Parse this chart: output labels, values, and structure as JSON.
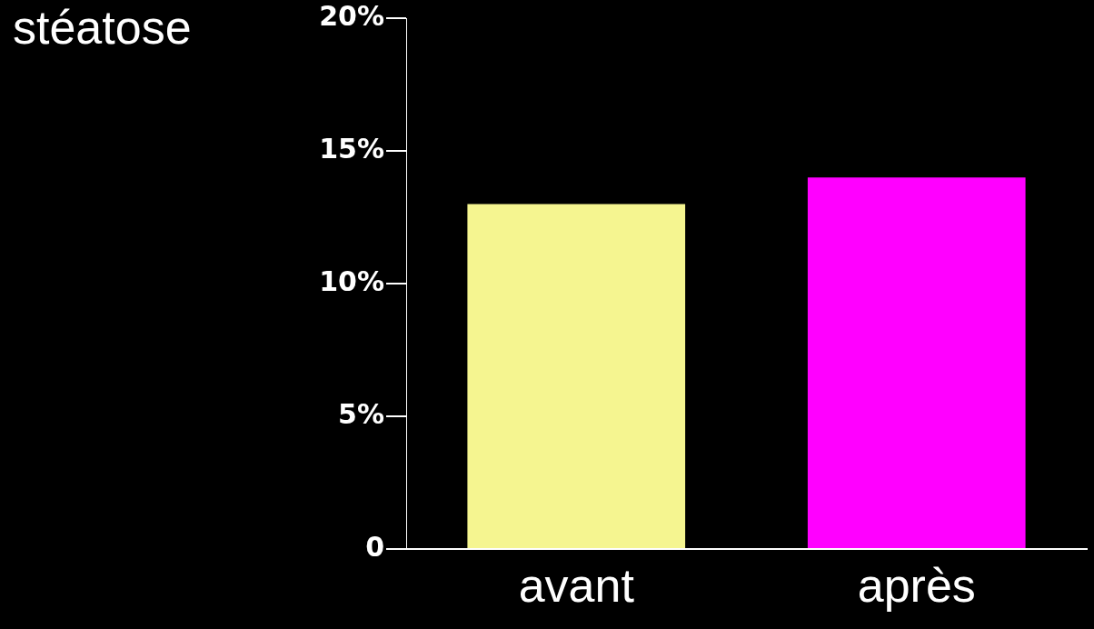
{
  "chart_data": {
    "type": "bar",
    "ylabel": "stéatose",
    "categories": [
      "avant",
      "après"
    ],
    "series": [
      {
        "colors": [
          "#f5f590",
          "#ff00ff"
        ],
        "values": [
          13,
          14
        ]
      }
    ],
    "ylim": [
      0,
      20
    ],
    "yticks": [
      0,
      {
        "value": 5,
        "label": "5%"
      },
      {
        "value": 10,
        "label": "10%"
      },
      {
        "value": 15,
        "label": "15%"
      },
      {
        "value": 20,
        "label": "20%"
      }
    ],
    "grid": false,
    "legend": false
  }
}
